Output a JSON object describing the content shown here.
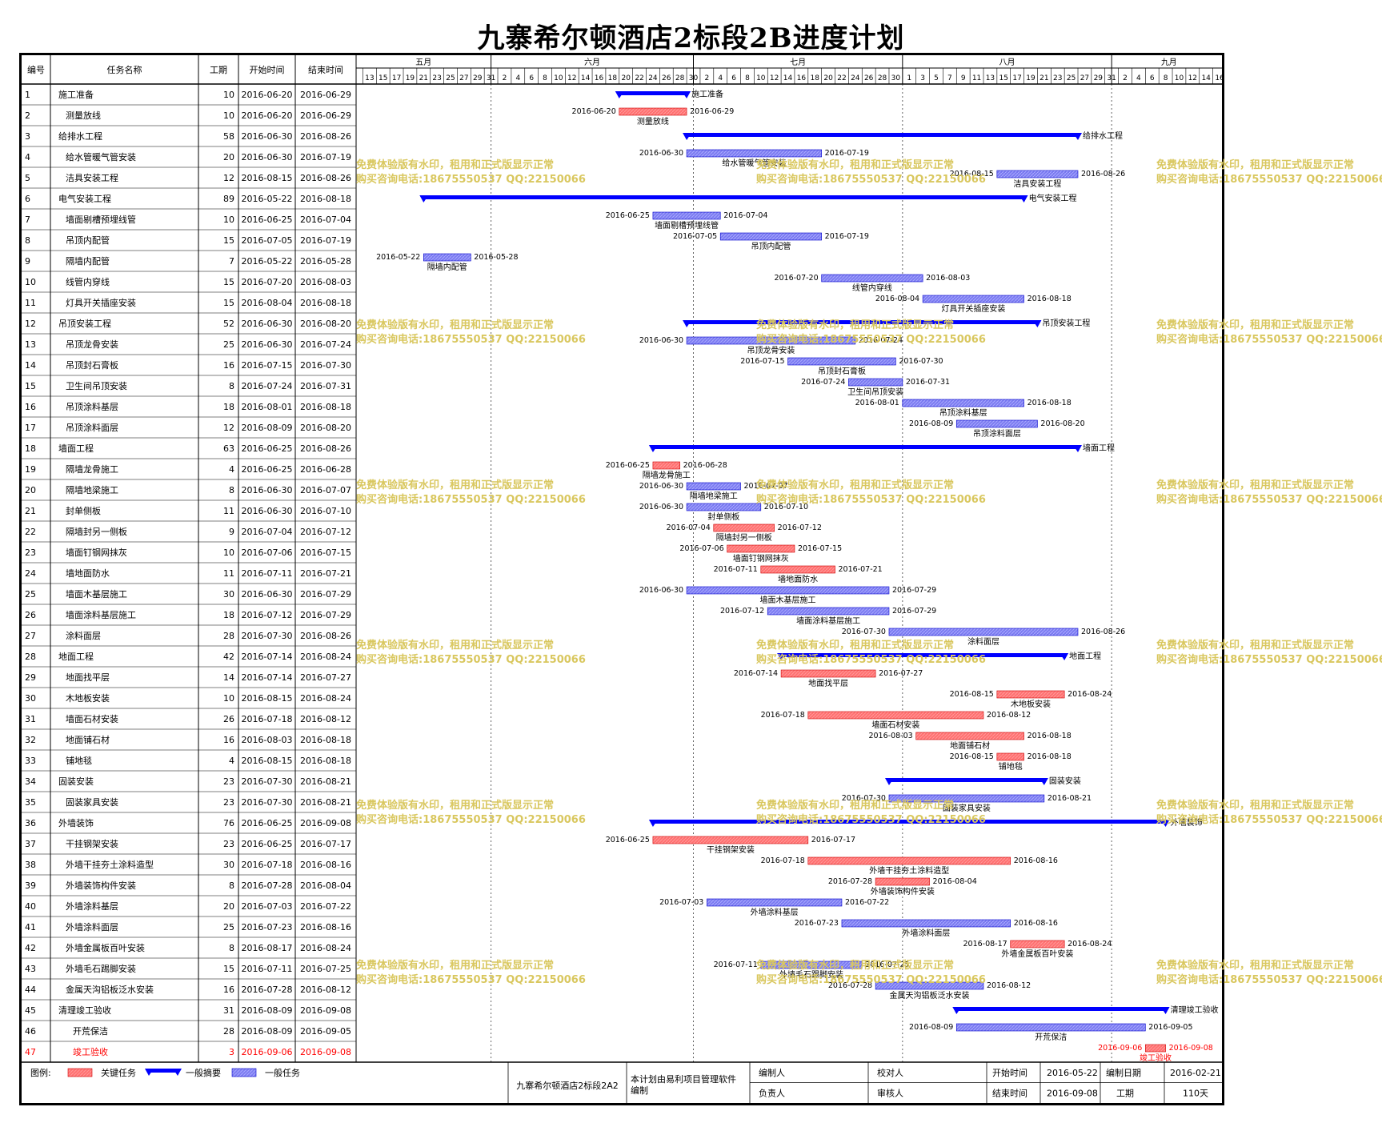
{
  "title": "九寨希尔顿酒店2标段2B进度计划",
  "columns": [
    "编号",
    "任务名称",
    "工期",
    "开始时间",
    "结束时间"
  ],
  "timescale": {
    "months": [
      "五月",
      "六月",
      "七月",
      "八月",
      "九月"
    ],
    "day_ticks": {
      "五月": [
        13,
        15,
        17,
        19,
        21,
        23,
        25,
        27,
        29,
        31
      ],
      "六月": [
        2,
        4,
        6,
        8,
        10,
        12,
        14,
        16,
        18,
        20,
        22,
        24,
        26,
        28,
        30
      ],
      "七月": [
        2,
        4,
        6,
        8,
        10,
        12,
        14,
        16,
        18,
        20,
        22,
        24,
        26,
        28,
        30
      ],
      "八月": [
        1,
        3,
        5,
        7,
        9,
        11,
        13,
        15,
        17,
        19,
        21,
        23,
        25,
        27,
        29,
        31
      ],
      "九月": [
        2,
        4,
        6,
        8,
        10,
        12,
        14,
        16
      ]
    },
    "start": "2016-05-12",
    "end": "2016-09-17"
  },
  "colors": {
    "critical": "#ff7070",
    "summary": "#0000ff",
    "normal": "#7b7bf0",
    "critical_text": "#ff0000",
    "watermark": "#d9c75e"
  },
  "watermark": {
    "line1": "免费体验版有水印，租用和正式版显示正常",
    "line2": "购买咨询电话:18675550537 QQ:22150066"
  },
  "legend": {
    "label": "图例:",
    "critical": "关键任务",
    "summary": "一般摘要",
    "normal": "一般任务"
  },
  "footer": {
    "project": "九寨希尔顿酒店2标段2A2",
    "software_note_1": "本计划由易利项目管理软件",
    "software_note_2": "编制",
    "compiler_label": "编制人",
    "reviewer_label": "校对人",
    "responsible_label": "负责人",
    "auditor_label": "审核人",
    "start_label": "开始时间",
    "start_value": "2016-05-22",
    "end_label": "结束时间",
    "end_value": "2016-09-08",
    "date_label": "编制日期",
    "date_value": "2016-02-21",
    "duration_label": "工期",
    "duration_value": "110天"
  },
  "tasks": [
    {
      "id": "1",
      "name": "施工准备",
      "indent": 0,
      "dur": "10",
      "start": "2016-06-20",
      "end": "2016-06-29",
      "type": "summary"
    },
    {
      "id": "2",
      "name": "测量放线",
      "indent": 1,
      "dur": "10",
      "start": "2016-06-20",
      "end": "2016-06-29",
      "type": "critical"
    },
    {
      "id": "3",
      "name": "给排水工程",
      "indent": 0,
      "dur": "58",
      "start": "2016-06-30",
      "end": "2016-08-26",
      "type": "summary"
    },
    {
      "id": "4",
      "name": "给水管暖气管安装",
      "indent": 1,
      "dur": "20",
      "start": "2016-06-30",
      "end": "2016-07-19",
      "type": "normal"
    },
    {
      "id": "5",
      "name": "洁具安装工程",
      "indent": 1,
      "dur": "12",
      "start": "2016-08-15",
      "end": "2016-08-26",
      "type": "normal"
    },
    {
      "id": "6",
      "name": "电气安装工程",
      "indent": 0,
      "dur": "89",
      "start": "2016-05-22",
      "end": "2016-08-18",
      "type": "summary"
    },
    {
      "id": "7",
      "name": "墙面剔槽预埋线管",
      "indent": 1,
      "dur": "10",
      "start": "2016-06-25",
      "end": "2016-07-04",
      "type": "normal"
    },
    {
      "id": "8",
      "name": "吊顶内配管",
      "indent": 1,
      "dur": "15",
      "start": "2016-07-05",
      "end": "2016-07-19",
      "type": "normal"
    },
    {
      "id": "9",
      "name": "隔墙内配管",
      "indent": 1,
      "dur": "7",
      "start": "2016-05-22",
      "end": "2016-05-28",
      "type": "normal"
    },
    {
      "id": "10",
      "name": "线管内穿线",
      "indent": 1,
      "dur": "15",
      "start": "2016-07-20",
      "end": "2016-08-03",
      "type": "normal"
    },
    {
      "id": "11",
      "name": "灯具开关插座安装",
      "indent": 1,
      "dur": "15",
      "start": "2016-08-04",
      "end": "2016-08-18",
      "type": "normal"
    },
    {
      "id": "12",
      "name": "吊顶安装工程",
      "indent": 0,
      "dur": "52",
      "start": "2016-06-30",
      "end": "2016-08-20",
      "type": "summary"
    },
    {
      "id": "13",
      "name": "吊顶龙骨安装",
      "indent": 1,
      "dur": "25",
      "start": "2016-06-30",
      "end": "2016-07-24",
      "type": "normal"
    },
    {
      "id": "14",
      "name": "吊顶封石膏板",
      "indent": 1,
      "dur": "16",
      "start": "2016-07-15",
      "end": "2016-07-30",
      "type": "normal"
    },
    {
      "id": "15",
      "name": "卫生间吊顶安装",
      "indent": 1,
      "dur": "8",
      "start": "2016-07-24",
      "end": "2016-07-31",
      "type": "normal"
    },
    {
      "id": "16",
      "name": "吊顶涂料基层",
      "indent": 1,
      "dur": "18",
      "start": "2016-08-01",
      "end": "2016-08-18",
      "type": "normal"
    },
    {
      "id": "17",
      "name": "吊顶涂料面层",
      "indent": 1,
      "dur": "12",
      "start": "2016-08-09",
      "end": "2016-08-20",
      "type": "normal"
    },
    {
      "id": "18",
      "name": "墙面工程",
      "indent": 0,
      "dur": "63",
      "start": "2016-06-25",
      "end": "2016-08-26",
      "type": "summary"
    },
    {
      "id": "19",
      "name": "隔墙龙骨施工",
      "indent": 1,
      "dur": "4",
      "start": "2016-06-25",
      "end": "2016-06-28",
      "type": "critical"
    },
    {
      "id": "20",
      "name": "隔墙地梁施工",
      "indent": 1,
      "dur": "8",
      "start": "2016-06-30",
      "end": "2016-07-07",
      "type": "normal"
    },
    {
      "id": "21",
      "name": "封单侧板",
      "indent": 1,
      "dur": "11",
      "start": "2016-06-30",
      "end": "2016-07-10",
      "type": "normal"
    },
    {
      "id": "22",
      "name": "隔墙封另一侧板",
      "indent": 1,
      "dur": "9",
      "start": "2016-07-04",
      "end": "2016-07-12",
      "type": "critical"
    },
    {
      "id": "23",
      "name": "墙面钉钢网抹灰",
      "indent": 1,
      "dur": "10",
      "start": "2016-07-06",
      "end": "2016-07-15",
      "type": "critical"
    },
    {
      "id": "24",
      "name": "墙地面防水",
      "indent": 1,
      "dur": "11",
      "start": "2016-07-11",
      "end": "2016-07-21",
      "type": "critical"
    },
    {
      "id": "25",
      "name": "墙面木基层施工",
      "indent": 1,
      "dur": "30",
      "start": "2016-06-30",
      "end": "2016-07-29",
      "type": "normal"
    },
    {
      "id": "26",
      "name": "墙面涂料基层施工",
      "indent": 1,
      "dur": "18",
      "start": "2016-07-12",
      "end": "2016-07-29",
      "type": "normal"
    },
    {
      "id": "27",
      "name": "涂料面层",
      "indent": 1,
      "dur": "28",
      "start": "2016-07-30",
      "end": "2016-08-26",
      "type": "normal"
    },
    {
      "id": "28",
      "name": "地面工程",
      "indent": 0,
      "dur": "42",
      "start": "2016-07-14",
      "end": "2016-08-24",
      "type": "summary"
    },
    {
      "id": "29",
      "name": "地面找平层",
      "indent": 1,
      "dur": "14",
      "start": "2016-07-14",
      "end": "2016-07-27",
      "type": "critical"
    },
    {
      "id": "30",
      "name": "木地板安装",
      "indent": 1,
      "dur": "10",
      "start": "2016-08-15",
      "end": "2016-08-24",
      "type": "critical"
    },
    {
      "id": "31",
      "name": "墙面石材安装",
      "indent": 1,
      "dur": "26",
      "start": "2016-07-18",
      "end": "2016-08-12",
      "type": "critical"
    },
    {
      "id": "32",
      "name": "地面铺石材",
      "indent": 1,
      "dur": "16",
      "start": "2016-08-03",
      "end": "2016-08-18",
      "type": "critical"
    },
    {
      "id": "33",
      "name": "铺地毯",
      "indent": 1,
      "dur": "4",
      "start": "2016-08-15",
      "end": "2016-08-18",
      "type": "critical"
    },
    {
      "id": "34",
      "name": "固装安装",
      "indent": 0,
      "dur": "23",
      "start": "2016-07-30",
      "end": "2016-08-21",
      "type": "summary"
    },
    {
      "id": "35",
      "name": "固装家具安装",
      "indent": 1,
      "dur": "23",
      "start": "2016-07-30",
      "end": "2016-08-21",
      "type": "normal"
    },
    {
      "id": "36",
      "name": "外墙装饰",
      "indent": 0,
      "dur": "76",
      "start": "2016-06-25",
      "end": "2016-09-08",
      "type": "summary"
    },
    {
      "id": "37",
      "name": "干挂钢架安装",
      "indent": 1,
      "dur": "23",
      "start": "2016-06-25",
      "end": "2016-07-17",
      "type": "critical"
    },
    {
      "id": "38",
      "name": "外墙干挂夯土涂料造型",
      "indent": 1,
      "dur": "30",
      "start": "2016-07-18",
      "end": "2016-08-16",
      "type": "critical"
    },
    {
      "id": "39",
      "name": "外墙装饰构件安装",
      "indent": 1,
      "dur": "8",
      "start": "2016-07-28",
      "end": "2016-08-04",
      "type": "critical"
    },
    {
      "id": "40",
      "name": "外墙涂料基层",
      "indent": 1,
      "dur": "20",
      "start": "2016-07-03",
      "end": "2016-07-22",
      "type": "normal"
    },
    {
      "id": "41",
      "name": "外墙涂料面层",
      "indent": 1,
      "dur": "25",
      "start": "2016-07-23",
      "end": "2016-08-16",
      "type": "normal"
    },
    {
      "id": "42",
      "name": "外墙金属板百叶安装",
      "indent": 1,
      "dur": "8",
      "start": "2016-08-17",
      "end": "2016-08-24",
      "type": "critical"
    },
    {
      "id": "43",
      "name": "外墙毛石踢脚安装",
      "indent": 1,
      "dur": "15",
      "start": "2016-07-11",
      "end": "2016-07-25",
      "type": "normal"
    },
    {
      "id": "44",
      "name": "金属天沟铝板泛水安装",
      "indent": 1,
      "dur": "16",
      "start": "2016-07-28",
      "end": "2016-08-12",
      "type": "normal"
    },
    {
      "id": "45",
      "name": "清理竣工验收",
      "indent": 0,
      "dur": "31",
      "start": "2016-08-09",
      "end": "2016-09-08",
      "type": "summary"
    },
    {
      "id": "46",
      "name": "开荒保洁",
      "indent": 2,
      "dur": "28",
      "start": "2016-08-09",
      "end": "2016-09-05",
      "type": "normal"
    },
    {
      "id": "47",
      "name": "竣工验收",
      "indent": 2,
      "dur": "3",
      "start": "2016-09-06",
      "end": "2016-09-08",
      "type": "critical"
    }
  ],
  "chart_data": {
    "type": "gantt",
    "title": "九寨希尔顿酒店2标段2B进度计划",
    "x_range": [
      "2016-05-12",
      "2016-09-17"
    ],
    "series": [
      {
        "name": "关键任务"
      },
      {
        "name": "一般摘要"
      },
      {
        "name": "一般任务"
      }
    ]
  }
}
